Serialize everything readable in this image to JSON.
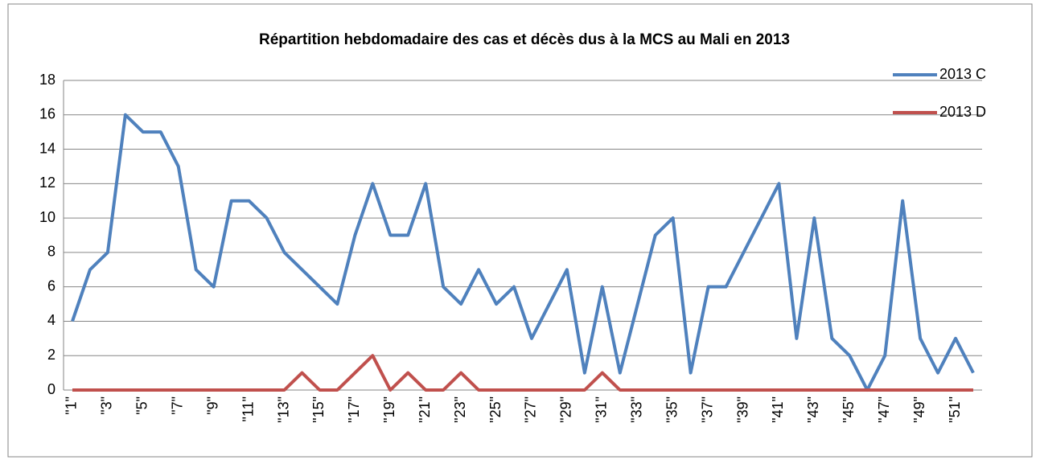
{
  "chart_data": {
    "type": "line",
    "title": "Répartition hebdomadaire des cas et décès dus à la MCS au Mali en 2013",
    "categories": [
      "\"1\"",
      null,
      "\"3\"",
      null,
      "\"5\"",
      null,
      "\"7\"",
      null,
      "\"9\"",
      null,
      "\"11\"",
      null,
      "\"13\"",
      null,
      "\"15\"",
      null,
      "\"17\"",
      null,
      "\"19\"",
      null,
      "\"21\"",
      null,
      "\"23\"",
      null,
      "\"25\"",
      null,
      "\"27\"",
      null,
      "\"29\"",
      null,
      "\"31\"",
      null,
      "\"33\"",
      null,
      "\"35\"",
      null,
      "\"37\"",
      null,
      "\"39\"",
      null,
      "\"41\"",
      null,
      "\"43\"",
      null,
      "\"45\"",
      null,
      "\"47\"",
      null,
      "\"49\"",
      null,
      "\"51\"",
      null
    ],
    "series": [
      {
        "name": "2013 C",
        "color": "#4f81bd",
        "values": [
          4,
          7,
          8,
          16,
          15,
          15,
          13,
          7,
          6,
          11,
          11,
          10,
          8,
          7,
          6,
          5,
          9,
          12,
          9,
          9,
          12,
          6,
          5,
          7,
          5,
          6,
          3,
          5,
          7,
          1,
          6,
          1,
          5,
          9,
          10,
          1,
          6,
          6,
          8,
          10,
          12,
          3,
          10,
          3,
          2,
          0,
          2,
          11,
          3,
          1,
          3,
          1
        ]
      },
      {
        "name": "2013 D",
        "color": "#c0504d",
        "values": [
          0,
          0,
          0,
          0,
          0,
          0,
          0,
          0,
          0,
          0,
          0,
          0,
          0,
          1,
          0,
          0,
          1,
          2,
          0,
          1,
          0,
          0,
          1,
          0,
          0,
          0,
          0,
          0,
          0,
          0,
          1,
          0,
          0,
          0,
          0,
          0,
          0,
          0,
          0,
          0,
          0,
          0,
          0,
          0,
          0,
          0,
          0,
          0,
          0,
          0,
          0,
          0
        ]
      }
    ],
    "ylim": [
      0,
      18
    ],
    "yticks": [
      0,
      2,
      4,
      6,
      8,
      10,
      12,
      14,
      16,
      18
    ],
    "grid": true,
    "legend": "right"
  }
}
